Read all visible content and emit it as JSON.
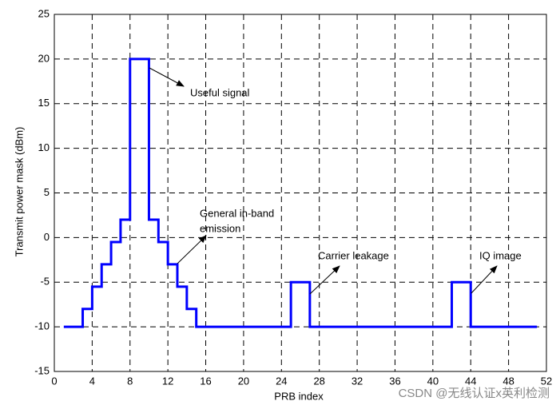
{
  "chart_data": {
    "type": "line",
    "ylabel": "Transmit power mask (dBm)",
    "xlabel": "PRB index",
    "x": [
      1,
      3,
      3,
      4,
      4,
      5,
      5,
      6,
      6,
      7,
      7,
      8,
      8,
      10,
      10,
      11,
      11,
      12,
      12,
      13,
      13,
      14,
      14,
      15,
      15,
      25,
      25,
      27,
      27,
      42,
      42,
      44,
      44,
      51
    ],
    "series": [
      {
        "color": "#0000ff",
        "values": [
          -10,
          -10,
          -8,
          -8,
          -5.5,
          -5.5,
          -3,
          -3,
          -0.5,
          -0.5,
          2,
          2,
          20,
          20,
          2,
          2,
          -0.5,
          -0.5,
          -3,
          -3,
          -5.5,
          -5.5,
          -8,
          -8,
          -10,
          -10,
          -5,
          -5,
          -10,
          -10,
          -5,
          -5,
          -10,
          -10
        ]
      }
    ],
    "xlim": [
      0,
      52
    ],
    "xticks": [
      0,
      4,
      8,
      12,
      16,
      20,
      24,
      28,
      32,
      36,
      40,
      44,
      48,
      52
    ],
    "ylim": [
      -15,
      25
    ],
    "yticks": [
      -15,
      -10,
      -5,
      0,
      5,
      10,
      15,
      20,
      25
    ],
    "grid": true,
    "annotations": [
      "Useful signal",
      "General in-band",
      "emission",
      "Carrier leakage",
      "IQ image"
    ]
  },
  "watermark": "CSDN @无线认证x英利检测"
}
